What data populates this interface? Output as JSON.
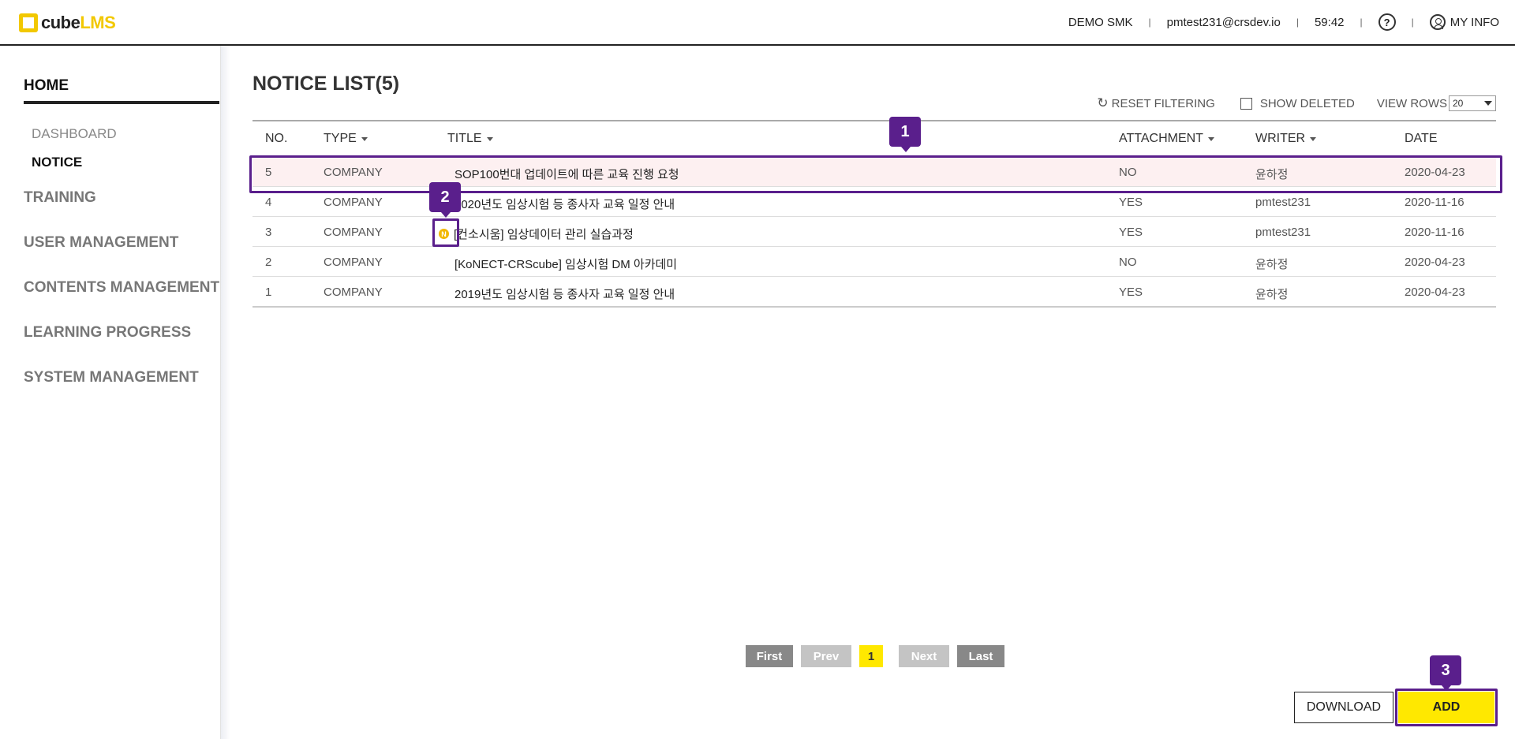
{
  "header": {
    "logo_part1": "cube",
    "logo_part2": "LMS",
    "org": "DEMO SMK",
    "email": "pmtest231@crsdev.io",
    "timer": "59:42",
    "help": "?",
    "myinfo": "MY INFO",
    "sep": "|"
  },
  "sidebar": {
    "home": "HOME",
    "sub": [
      "DASHBOARD",
      "NOTICE"
    ],
    "menu": [
      "TRAINING",
      "USER MANAGEMENT",
      "CONTENTS MANAGEMENT",
      "LEARNING PROGRESS",
      "SYSTEM MANAGEMENT"
    ]
  },
  "main": {
    "title": "NOTICE LIST(5)",
    "reset_label": "RESET FILTERING",
    "show_deleted_label": "SHOW DELETED",
    "view_rows_label": "VIEW ROWS",
    "view_rows_value": "20",
    "columns": [
      "NO.",
      "TYPE",
      "TITLE",
      "ATTACHMENT",
      "WRITER",
      "DATE"
    ],
    "rows": [
      {
        "no": "5",
        "type": "COMPANY",
        "title": "SOP100번대 업데이트에 따른 교육 진행 요청",
        "attachment": "NO",
        "writer": "윤하정",
        "date": "2020-04-23"
      },
      {
        "no": "4",
        "type": "COMPANY",
        "title": "2020년도 임상시험 등 종사자 교육 일정 안내",
        "attachment": "YES",
        "writer": "pmtest231",
        "date": "2020-11-16"
      },
      {
        "no": "3",
        "type": "COMPANY",
        "title": "[컨소시움] 임상데이터 관리 실습과정",
        "attachment": "YES",
        "writer": "pmtest231",
        "date": "2020-11-16",
        "badge": "N"
      },
      {
        "no": "2",
        "type": "COMPANY",
        "title": "[KoNECT-CRScube] 임상시험 DM 아카데미",
        "attachment": "NO",
        "writer": "윤하정",
        "date": "2020-04-23"
      },
      {
        "no": "1",
        "type": "COMPANY",
        "title": "2019년도 임상시험 등 종사자 교육 일정 안내",
        "attachment": "YES",
        "writer": "윤하정",
        "date": "2020-04-23"
      }
    ]
  },
  "pagination": {
    "first": "First",
    "prev": "Prev",
    "current": "1",
    "next": "Next",
    "last": "Last"
  },
  "actions": {
    "download": "DOWNLOAD",
    "add": "ADD"
  },
  "annotations": [
    "1",
    "2",
    "3"
  ]
}
